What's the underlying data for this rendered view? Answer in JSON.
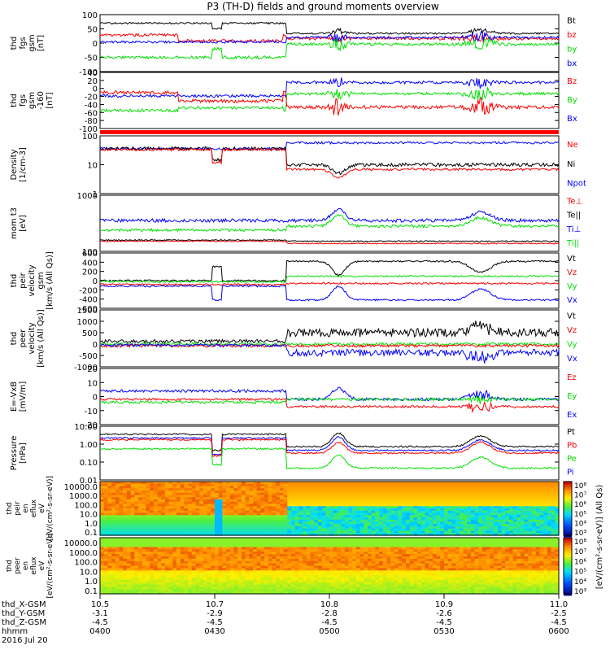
{
  "title": "P3 (TH-D) fields and ground moments overview",
  "colors": {
    "black": "#000000",
    "red": "#ff0000",
    "green": "#00e000",
    "blue": "#0000ff",
    "cyan": "#00c0ff"
  },
  "chart_data": [
    {
      "type": "line",
      "ylabel": [
        "thd",
        "fgs",
        "gsm",
        "[nT]"
      ],
      "yticks": [
        "100",
        "50",
        "0",
        "-50",
        "-100"
      ],
      "legend": [
        {
          "label": "Bt",
          "color": "#000000"
        },
        {
          "label": "bz",
          "color": "#ff0000"
        },
        {
          "label": "by",
          "color": "#00e000"
        },
        {
          "label": "bx",
          "color": "#0000ff"
        }
      ]
    },
    {
      "type": "line",
      "ylabel": [
        "thd",
        "fgs",
        "gsm",
        "-160",
        "[nT]"
      ],
      "yticks": [
        "40",
        "20",
        "0",
        "-20",
        "-40",
        "-60",
        "-80",
        "-100"
      ],
      "legend": [
        {
          "label": "Bz",
          "color": "#ff0000"
        },
        {
          "label": "By",
          "color": "#00e000"
        },
        {
          "label": "Bx",
          "color": "#0000ff"
        }
      ]
    },
    {
      "type": "line",
      "ylabel": [
        "Density",
        "[1/cm-3]"
      ],
      "yticks": [
        "100",
        "10",
        "1"
      ],
      "yscale": "log",
      "legend": [
        {
          "label": "Ne",
          "color": "#ff0000"
        },
        {
          "label": "Ni",
          "color": "#000000"
        },
        {
          "label": "Npot",
          "color": "#0000ff"
        }
      ]
    },
    {
      "type": "line",
      "ylabel": [
        "mom t3",
        "[eV]"
      ],
      "yticks": [
        "1000",
        "100"
      ],
      "yscale": "log",
      "legend": [
        {
          "label": "Te⊥",
          "color": "#ff0000"
        },
        {
          "label": "Te||",
          "color": "#000000"
        },
        {
          "label": "Ti⊥",
          "color": "#0000ff"
        },
        {
          "label": "Ti||",
          "color": "#00e000"
        }
      ]
    },
    {
      "type": "line",
      "ylabel": [
        "thd",
        "peir",
        "velocity",
        "gsm",
        "[km/s (All Qs)]"
      ],
      "yticks": [
        "600",
        "400",
        "200",
        "0",
        "-200",
        "-400",
        "-600"
      ],
      "legend": [
        {
          "label": "Vt",
          "color": "#000000"
        },
        {
          "label": "Vz",
          "color": "#ff0000"
        },
        {
          "label": "Vy",
          "color": "#00e000"
        },
        {
          "label": "Vx",
          "color": "#0000ff"
        }
      ]
    },
    {
      "type": "line",
      "ylabel": [
        "thd",
        "peer",
        "velocity",
        "[km/s (All Qs)]"
      ],
      "yticks": [
        "1500",
        "1000",
        "500",
        "0",
        "-500",
        "-1000"
      ],
      "legend": [
        {
          "label": "Vt",
          "color": "#000000"
        },
        {
          "label": "Vz",
          "color": "#ff0000"
        },
        {
          "label": "Vy",
          "color": "#00e000"
        },
        {
          "label": "Vx",
          "color": "#0000ff"
        }
      ]
    },
    {
      "type": "line",
      "ylabel": [
        "E=-VxB",
        "[mV/m]"
      ],
      "yticks": [
        "20",
        "10",
        "0",
        "-10",
        "-20"
      ],
      "legend": [
        {
          "label": "Ez",
          "color": "#ff0000"
        },
        {
          "label": "Ey",
          "color": "#00e000"
        },
        {
          "label": "Ex",
          "color": "#0000ff"
        }
      ]
    },
    {
      "type": "line",
      "ylabel": [
        "Pressure",
        "[nPa]"
      ],
      "yticks": [
        "10.00",
        "1.00",
        "0.10",
        "0.01"
      ],
      "yscale": "log",
      "legend": [
        {
          "label": "Pt",
          "color": "#000000"
        },
        {
          "label": "Pb",
          "color": "#ff0000"
        },
        {
          "label": "Pe",
          "color": "#00e000"
        },
        {
          "label": "Pi",
          "color": "#0000ff"
        }
      ]
    },
    {
      "type": "heatmap",
      "ylabel": [
        "thd",
        "peir",
        "en",
        "eflux",
        "eV",
        "[eV/(cm²-s-sr-eV)]"
      ],
      "yticks": [
        "10000.0",
        "1000.0",
        "100.0",
        "10.0",
        "1.0",
        "0.1"
      ]
    },
    {
      "type": "heatmap",
      "ylabel": [
        "thd",
        "peer",
        "en",
        "eflux",
        "eV",
        "[eV/(cm²-s-sr-eV)]"
      ],
      "yticks": [
        "10000.0",
        "1000.0",
        "100.0",
        "10.0",
        "1.0",
        "0.1"
      ]
    }
  ],
  "colorbar": {
    "ticks": [
      "10⁸",
      "10⁷",
      "10⁶",
      "10⁵",
      "10⁴",
      "10³"
    ],
    "label": "[eV/(cm²-s-sr-eV)] (All Qs)"
  },
  "x_axis": {
    "rows": [
      {
        "label": "thd_X-GSM",
        "values": [
          "10.5",
          "10.7",
          "10.8",
          "10.9",
          "11.0"
        ]
      },
      {
        "label": "thd_Y-GSM",
        "values": [
          "-3.1",
          "-2.9",
          "-2.8",
          "-2.6",
          "-2.5"
        ]
      },
      {
        "label": "thd_Z-GSM",
        "values": [
          "-4.5",
          "-4.5",
          "-4.5",
          "-4.5",
          "-4.5"
        ]
      },
      {
        "label": "hhmm",
        "values": [
          "0400",
          "0430",
          "0500",
          "0530",
          "0600"
        ]
      }
    ],
    "date": "2016 Jul 20"
  }
}
